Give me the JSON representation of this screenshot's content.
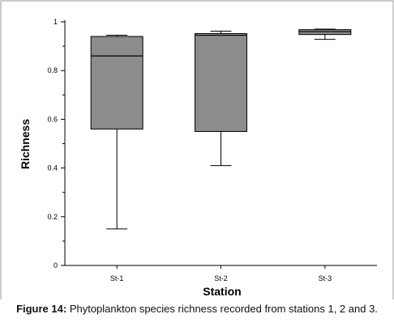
{
  "caption": {
    "label": "Figure 14:",
    "text": "Phytoplankton species richness recorded from stations 1, 2 and 3."
  },
  "chart_data": {
    "type": "box",
    "xlabel": "Station",
    "ylabel": "Richness",
    "ylim": [
      0,
      1
    ],
    "yticks": [
      "0",
      "0.2",
      "0.4",
      "0.6",
      "0.8",
      "1"
    ],
    "categories": [
      "St-1",
      "St-2",
      "St-3"
    ],
    "boxes": [
      {
        "category": "St-1",
        "min": 0.15,
        "q1": 0.56,
        "median": 0.86,
        "q3": 0.94,
        "max": 0.945
      },
      {
        "category": "St-2",
        "min": 0.41,
        "q1": 0.55,
        "median": 0.945,
        "q3": 0.952,
        "max": 0.962
      },
      {
        "category": "St-3",
        "min": 0.928,
        "q1": 0.948,
        "median": 0.96,
        "q3": 0.968,
        "max": 0.97
      }
    ],
    "box_color": "#8c8c8c",
    "grid": false
  }
}
